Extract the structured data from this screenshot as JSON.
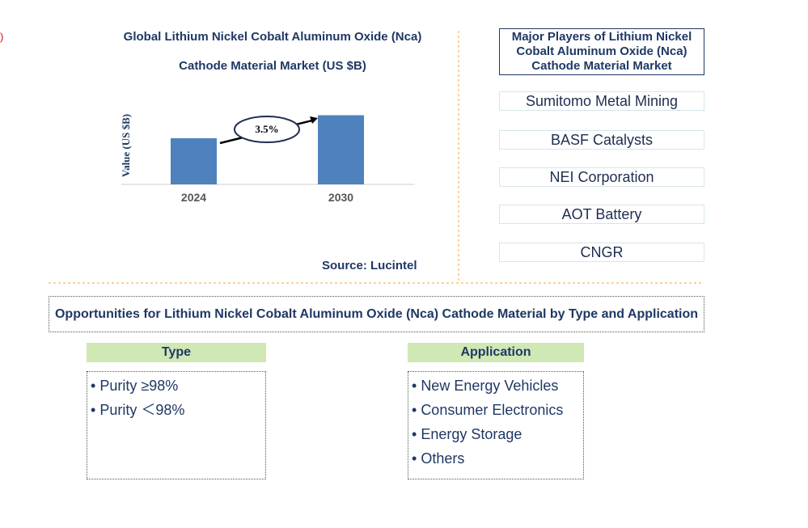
{
  "corner_fragment": ")",
  "chart_data": {
    "type": "bar",
    "title": "Global Lithium Nickel Cobalt Aluminum Oxide (Nca) Cathode Material Market (US $B)",
    "y_label": "Value (US $B)",
    "categories": [
      "2024",
      "2030"
    ],
    "values": [
      1,
      1.5
    ],
    "color": "#4f81bd",
    "ylim": [
      0,
      2
    ],
    "annotation": "3.5%",
    "source": "Source: Lucintel"
  },
  "players": {
    "title": "Major Players of Lithium Nickel Cobalt Aluminum Oxide (Nca) Cathode Material Market",
    "items": [
      "Sumitomo Metal Mining",
      "BASF Catalysts",
      "NEI Corporation",
      "AOT Battery",
      "CNGR"
    ]
  },
  "opportunities": {
    "title": "Opportunities for Lithium Nickel Cobalt Aluminum Oxide (Nca) Cathode Material by Type and Application",
    "type": {
      "heading": "Type",
      "items": [
        "Purity ≥98%",
        "Purity ＜98%"
      ]
    },
    "application": {
      "heading": "Application",
      "items": [
        "New Energy Vehicles",
        "Consumer Electronics",
        "Energy Storage",
        "Others"
      ]
    }
  }
}
